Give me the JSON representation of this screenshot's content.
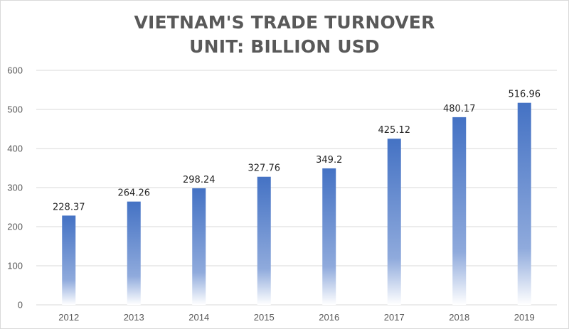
{
  "title_line1": "VIETNAM'S TRADE TURNOVER",
  "title_line2": "UNIT: BILLION USD",
  "colors": {
    "bar_top": "#4472c4",
    "bar_mid": "#8faadc",
    "bar_bottom": "#ffffff",
    "grid": "#d9d9d9",
    "text": "#595959"
  },
  "chart_data": {
    "type": "bar",
    "title": "VIETNAM'S TRADE TURNOVER\nUNIT: BILLION USD",
    "xlabel": "",
    "ylabel": "",
    "categories": [
      "2012",
      "2013",
      "2014",
      "2015",
      "2016",
      "2017",
      "2018",
      "2019"
    ],
    "values": [
      228.37,
      264.26,
      298.24,
      327.76,
      349.2,
      425.12,
      480.17,
      516.96
    ],
    "value_labels": [
      "228.37",
      "264.26",
      "298.24",
      "327.76",
      "349.2",
      "425.12",
      "480.17",
      "516.96"
    ],
    "ylim": [
      0,
      600
    ],
    "yticks": [
      0,
      100,
      200,
      300,
      400,
      500,
      600
    ],
    "grid": true,
    "legend": "none"
  }
}
